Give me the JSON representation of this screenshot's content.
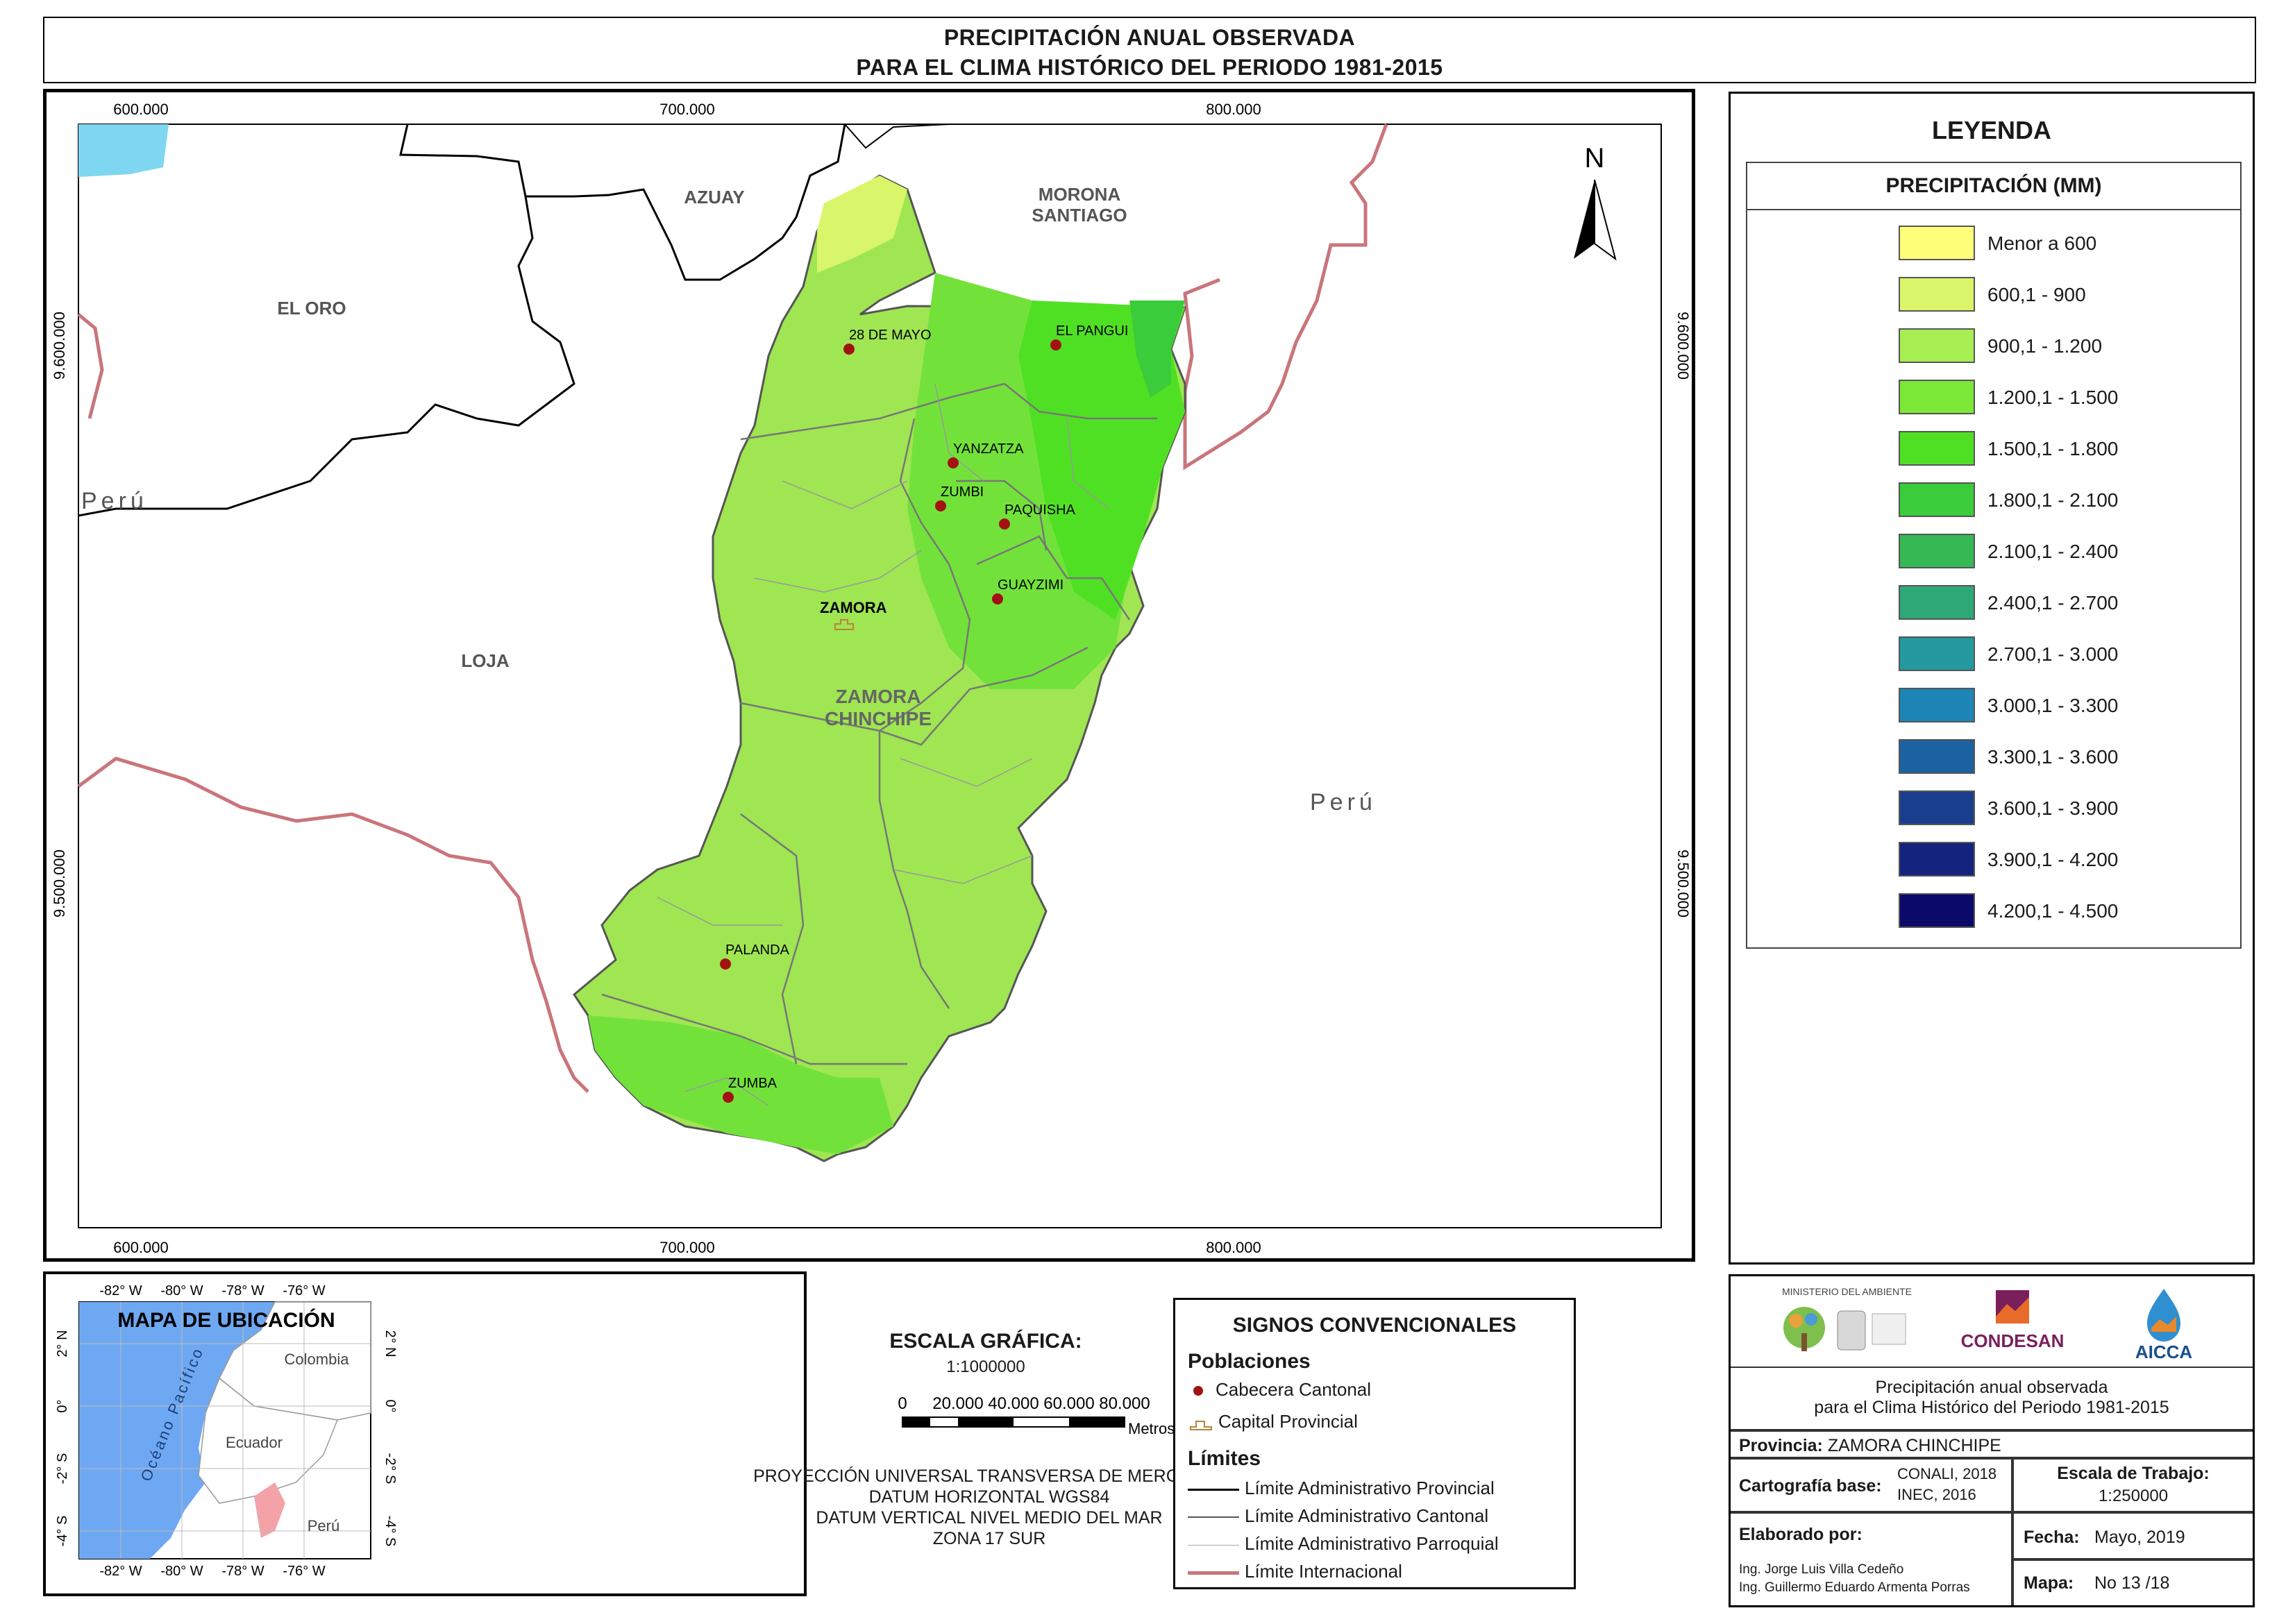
{
  "title": {
    "line1": "PRECIPITACIÓN ANUAL OBSERVADA",
    "line2": "PARA EL CLIMA HISTÓRICO DEL PERIODO 1981-2015"
  },
  "map": {
    "x_ticks": [
      "600.000",
      "700.000",
      "800.000"
    ],
    "y_ticks": [
      "9.600.000",
      "9.500.000"
    ],
    "north": "N",
    "regions": {
      "azuay": "AZUAY",
      "morona": [
        "MORONA",
        "SANTIAGO"
      ],
      "el_oro": "EL ORO",
      "loja": "LOJA",
      "peru_w": "Perú",
      "peru_e": "Perú",
      "zamora_prov": [
        "ZAMORA",
        "CHINCHIPE"
      ]
    },
    "towns": [
      "28 DE MAYO",
      "EL PANGUI",
      "YANZATZA",
      "ZUMBI",
      "PAQUISHA",
      "GUAYZIMI",
      "ZAMORA",
      "PALANDA",
      "ZUMBA"
    ]
  },
  "legend": {
    "title": "LEYENDA",
    "subtitle": "PRECIPITACIÓN (MM)",
    "items": [
      {
        "label": "Menor a 600",
        "color": "#ffff7a"
      },
      {
        "label": "600,1 - 900",
        "color": "#d9f56a"
      },
      {
        "label": "900,1 - 1.200",
        "color": "#a6ee52"
      },
      {
        "label": "1.200,1 - 1.500",
        "color": "#7ce838"
      },
      {
        "label": "1.500,1 - 1.800",
        "color": "#4fe024"
      },
      {
        "label": "1.800,1 - 2.100",
        "color": "#3acc3a"
      },
      {
        "label": "2.100,1 - 2.400",
        "color": "#36b855"
      },
      {
        "label": "2.400,1 - 2.700",
        "color": "#2fa878"
      },
      {
        "label": "2.700,1 - 3.000",
        "color": "#2499a0"
      },
      {
        "label": "3.000,1 - 3.300",
        "color": "#1d86b6"
      },
      {
        "label": "3.300,1 - 3.600",
        "color": "#1b62a0"
      },
      {
        "label": "3.600,1 - 3.900",
        "color": "#1a3e8e"
      },
      {
        "label": "3.900,1 - 4.200",
        "color": "#14237e"
      },
      {
        "label": "4.200,1 - 4.500",
        "color": "#0b0a6a"
      }
    ]
  },
  "location": {
    "title": "MAPA DE UBICACIÓN",
    "top_ticks": [
      "-82° W",
      "-80° W",
      "-78° W",
      "-76° W"
    ],
    "bottom_ticks": [
      "-82° W",
      "-80° W",
      "-78° W",
      "-76° W"
    ],
    "side_ticks": [
      "2° N",
      "0°",
      "-2° S",
      "-4° S"
    ],
    "ocean": "Océano Pacífico",
    "countries": [
      "Colombia",
      "Ecuador",
      "Perú"
    ]
  },
  "scale": {
    "title": "ESCALA GRÁFICA:",
    "ratio": "1:1000000",
    "ticks": [
      "0",
      "20.000",
      "40.000",
      "60.000",
      "80.000"
    ],
    "unit": "Metros",
    "projection": [
      "PROYECCIÓN UNIVERSAL TRANSVERSA DE MERCATOR",
      "DATUM HORIZONTAL WGS84",
      "DATUM VERTICAL NIVEL MEDIO DEL MAR",
      "ZONA 17 SUR"
    ]
  },
  "signos": {
    "title": "SIGNOS CONVENCIONALES",
    "poblaciones": "Poblaciones",
    "cabecera": "Cabecera Cantonal",
    "capital": "Capital Provincial",
    "limites": "Límites",
    "lim_prov": "Límite Administrativo Provincial",
    "lim_cant": "Límite Administrativo Cantonal",
    "lim_parr": "Límite Administrativo Parroquial",
    "lim_int": "Límite Internacional"
  },
  "info": {
    "logo_ministerio": "MINISTERIO DEL AMBIENTE",
    "logo_condesan": "CONDESAN",
    "logo_aicca": "AICCA",
    "desc1": "Precipitación anual observada",
    "desc2": "para el Clima Histórico del Periodo 1981-2015",
    "provincia_label": "Provincia:",
    "provincia_value": "ZAMORA CHINCHIPE",
    "carto_label": "Cartografía base:",
    "carto_v1": "CONALI, 2018",
    "carto_v2": "INEC, 2016",
    "escala_label": "Escala de Trabajo:",
    "escala_value": "1:250000",
    "elab_label": "Elaborado por:",
    "elab_1": "Ing. Jorge Luis Villa Cedeño",
    "elab_2": "Ing. Guillermo Eduardo Armenta Porras",
    "fecha_label": "Fecha:",
    "fecha_value": "Mayo, 2019",
    "mapa_label": "Mapa:",
    "mapa_value": "No 13 /18"
  }
}
